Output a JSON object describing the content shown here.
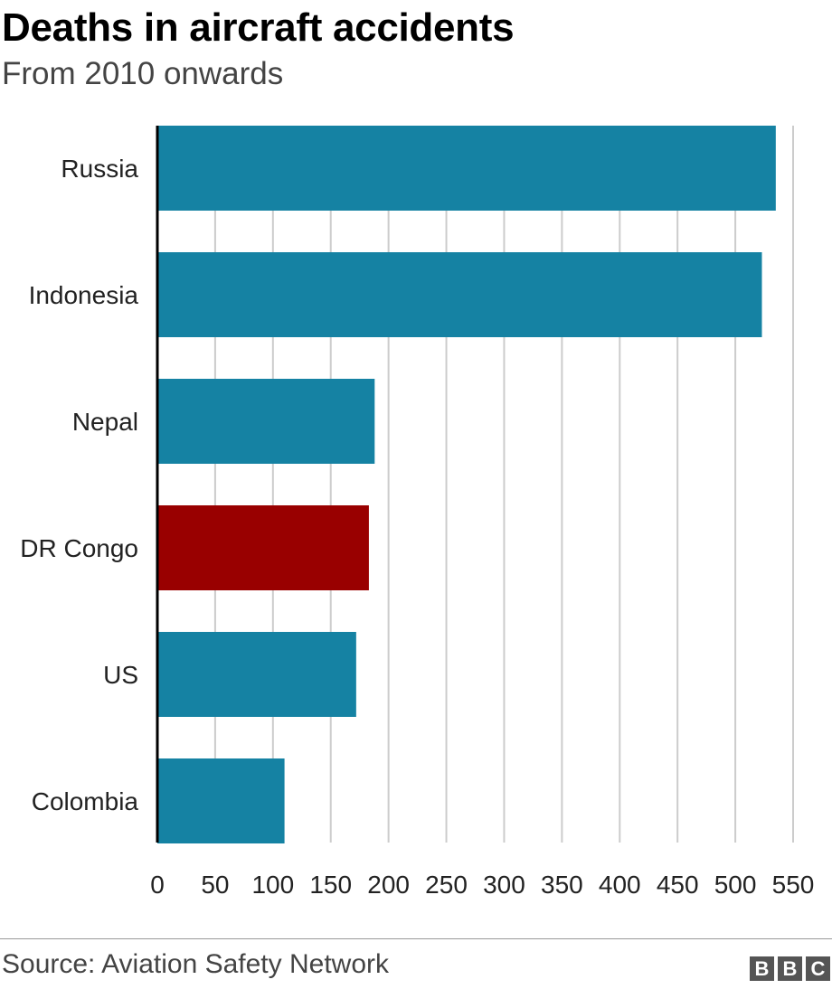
{
  "header": {
    "title": "Deaths in aircraft accidents",
    "subtitle": "From 2010 onwards"
  },
  "footer": {
    "source": "Source: Aviation Safety Network",
    "logo_letters": [
      "B",
      "B",
      "C"
    ]
  },
  "colors": {
    "bar_default": "#1582a3",
    "bar_highlight": "#990000",
    "gridline": "#cccccc",
    "axis": "#000000"
  },
  "chart_data": {
    "type": "bar",
    "orientation": "horizontal",
    "title": "Deaths in aircraft accidents",
    "subtitle": "From 2010 onwards",
    "categories": [
      "Russia",
      "Indonesia",
      "Nepal",
      "DR Congo",
      "US",
      "Colombia"
    ],
    "values": [
      535,
      523,
      188,
      183,
      172,
      110
    ],
    "highlighted_category": "DR Congo",
    "xlim": [
      0,
      550
    ],
    "xticks": [
      0,
      50,
      100,
      150,
      200,
      250,
      300,
      350,
      400,
      450,
      500,
      550
    ],
    "xlabel": "",
    "ylabel": "",
    "grid": true,
    "legend": "none"
  }
}
